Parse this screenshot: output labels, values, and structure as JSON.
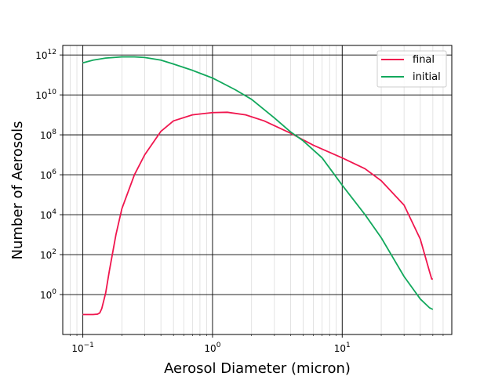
{
  "chart_data": {
    "type": "line",
    "title": "",
    "xlabel": "Aerosol Diameter (micron)",
    "ylabel": "Number of Aerosols",
    "x_scale": "log",
    "y_scale": "log",
    "xlim": [
      0.07,
      70
    ],
    "ylim": [
      0.01,
      3000000000000.0
    ],
    "grid": true,
    "legend_position": "top-right",
    "x_ticks": [
      {
        "value": 0.1,
        "base": "10",
        "exp": "−1"
      },
      {
        "value": 1,
        "base": "10",
        "exp": "0"
      },
      {
        "value": 10,
        "base": "10",
        "exp": "1"
      }
    ],
    "y_ticks": [
      {
        "value": 1,
        "base": "10",
        "exp": "0"
      },
      {
        "value": 100,
        "base": "10",
        "exp": "2"
      },
      {
        "value": 10000,
        "base": "10",
        "exp": "4"
      },
      {
        "value": 1000000,
        "base": "10",
        "exp": "6"
      },
      {
        "value": 100000000,
        "base": "10",
        "exp": "8"
      },
      {
        "value": 10000000000,
        "base": "10",
        "exp": "10"
      },
      {
        "value": 1000000000000,
        "base": "10",
        "exp": "12"
      }
    ],
    "series": [
      {
        "name": "final",
        "color": "#f0164e",
        "x": [
          0.1,
          0.12,
          0.13,
          0.135,
          0.14,
          0.15,
          0.16,
          0.18,
          0.2,
          0.25,
          0.3,
          0.4,
          0.5,
          0.7,
          1.0,
          1.3,
          1.8,
          2.5,
          4.0,
          6.0,
          10.0,
          15.0,
          20.0,
          30.0,
          40.0,
          47.0,
          49.0,
          50.0
        ],
        "y": [
          0.1,
          0.1,
          0.105,
          0.12,
          0.2,
          1.2,
          15,
          1000,
          20000,
          1000000,
          10000000,
          150000000,
          500000000,
          1000000000,
          1300000000,
          1350000000,
          1000000000,
          500000000,
          120000000,
          30000000,
          7000000,
          2000000,
          500000,
          30000,
          600,
          15,
          6,
          6
        ]
      },
      {
        "name": "initial",
        "color": "#12a85c",
        "x": [
          0.1,
          0.12,
          0.15,
          0.2,
          0.25,
          0.3,
          0.4,
          0.5,
          0.7,
          1.0,
          1.5,
          2.0,
          3.0,
          4.0,
          5.0,
          7.0,
          10.0,
          15.0,
          20.0,
          30.0,
          40.0,
          47.0,
          50.0
        ],
        "y": [
          400000000000,
          550000000000,
          700000000000,
          800000000000,
          800000000000,
          750000000000,
          550000000000,
          350000000000,
          170000000000,
          70000000000,
          18000000000,
          6000000000,
          700000000,
          140000000,
          50000000,
          7000000,
          300000,
          10000,
          700,
          8,
          0.6,
          0.22,
          0.18
        ]
      }
    ]
  }
}
